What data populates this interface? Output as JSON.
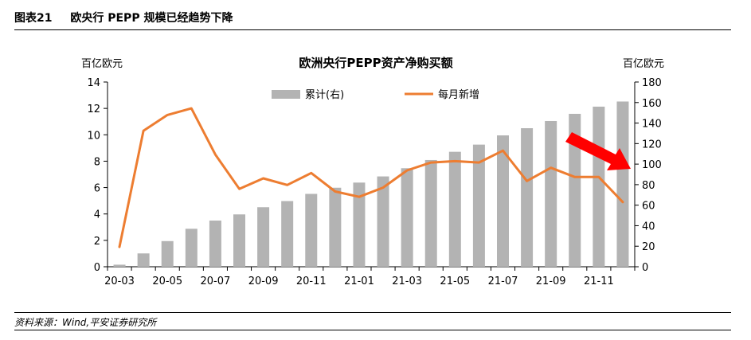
{
  "figure": {
    "number": "图表21",
    "title": "欧央行 PEPP 规模已经趋势下降",
    "source": "资料来源：Wind,平安证券研究所"
  },
  "chart_data": {
    "type": "bar+line",
    "title": "欧洲央行PEPP资产净购买额",
    "y_left_label": "百亿欧元",
    "y_right_label": "百亿欧元",
    "y_left_range": [
      0,
      14
    ],
    "y_left_ticks": [
      0,
      2,
      4,
      6,
      8,
      10,
      12,
      14
    ],
    "y_right_range": [
      0,
      180
    ],
    "y_right_ticks": [
      0,
      20,
      40,
      60,
      80,
      100,
      120,
      140,
      160,
      180
    ],
    "x": [
      "20-03",
      "20-04",
      "20-05",
      "20-06",
      "20-07",
      "20-08",
      "20-09",
      "20-10",
      "20-11",
      "20-12",
      "21-01",
      "21-02",
      "21-03",
      "21-04",
      "21-05",
      "21-06",
      "21-07",
      "21-08",
      "21-09",
      "21-10",
      "21-11",
      "21-12"
    ],
    "x_tick_labels": [
      "20-03",
      "20-05",
      "20-07",
      "20-09",
      "20-11",
      "21-01",
      "21-03",
      "21-05",
      "21-07",
      "21-09",
      "21-11"
    ],
    "series": [
      {
        "name": "累计(右)",
        "type": "bar",
        "axis": "right",
        "color": "#b3b3b3",
        "values": [
          2,
          13,
          25,
          37,
          45,
          51,
          58,
          64,
          71,
          77,
          82,
          88,
          96,
          104,
          112,
          119,
          128,
          135,
          142,
          149,
          156,
          161
        ]
      },
      {
        "name": "每月新增",
        "type": "line",
        "axis": "left",
        "color": "#ed7d31",
        "values": [
          1.5,
          10.3,
          11.5,
          12.0,
          8.5,
          5.9,
          6.7,
          6.2,
          7.1,
          5.7,
          5.3,
          6.0,
          7.3,
          7.9,
          8.0,
          7.9,
          8.8,
          6.5,
          7.5,
          6.8,
          6.8,
          4.9
        ]
      }
    ],
    "legend": "top-center",
    "grid": false,
    "annotations": [
      {
        "type": "arrow",
        "color": "#ff0000",
        "direction": "down-right"
      }
    ]
  }
}
